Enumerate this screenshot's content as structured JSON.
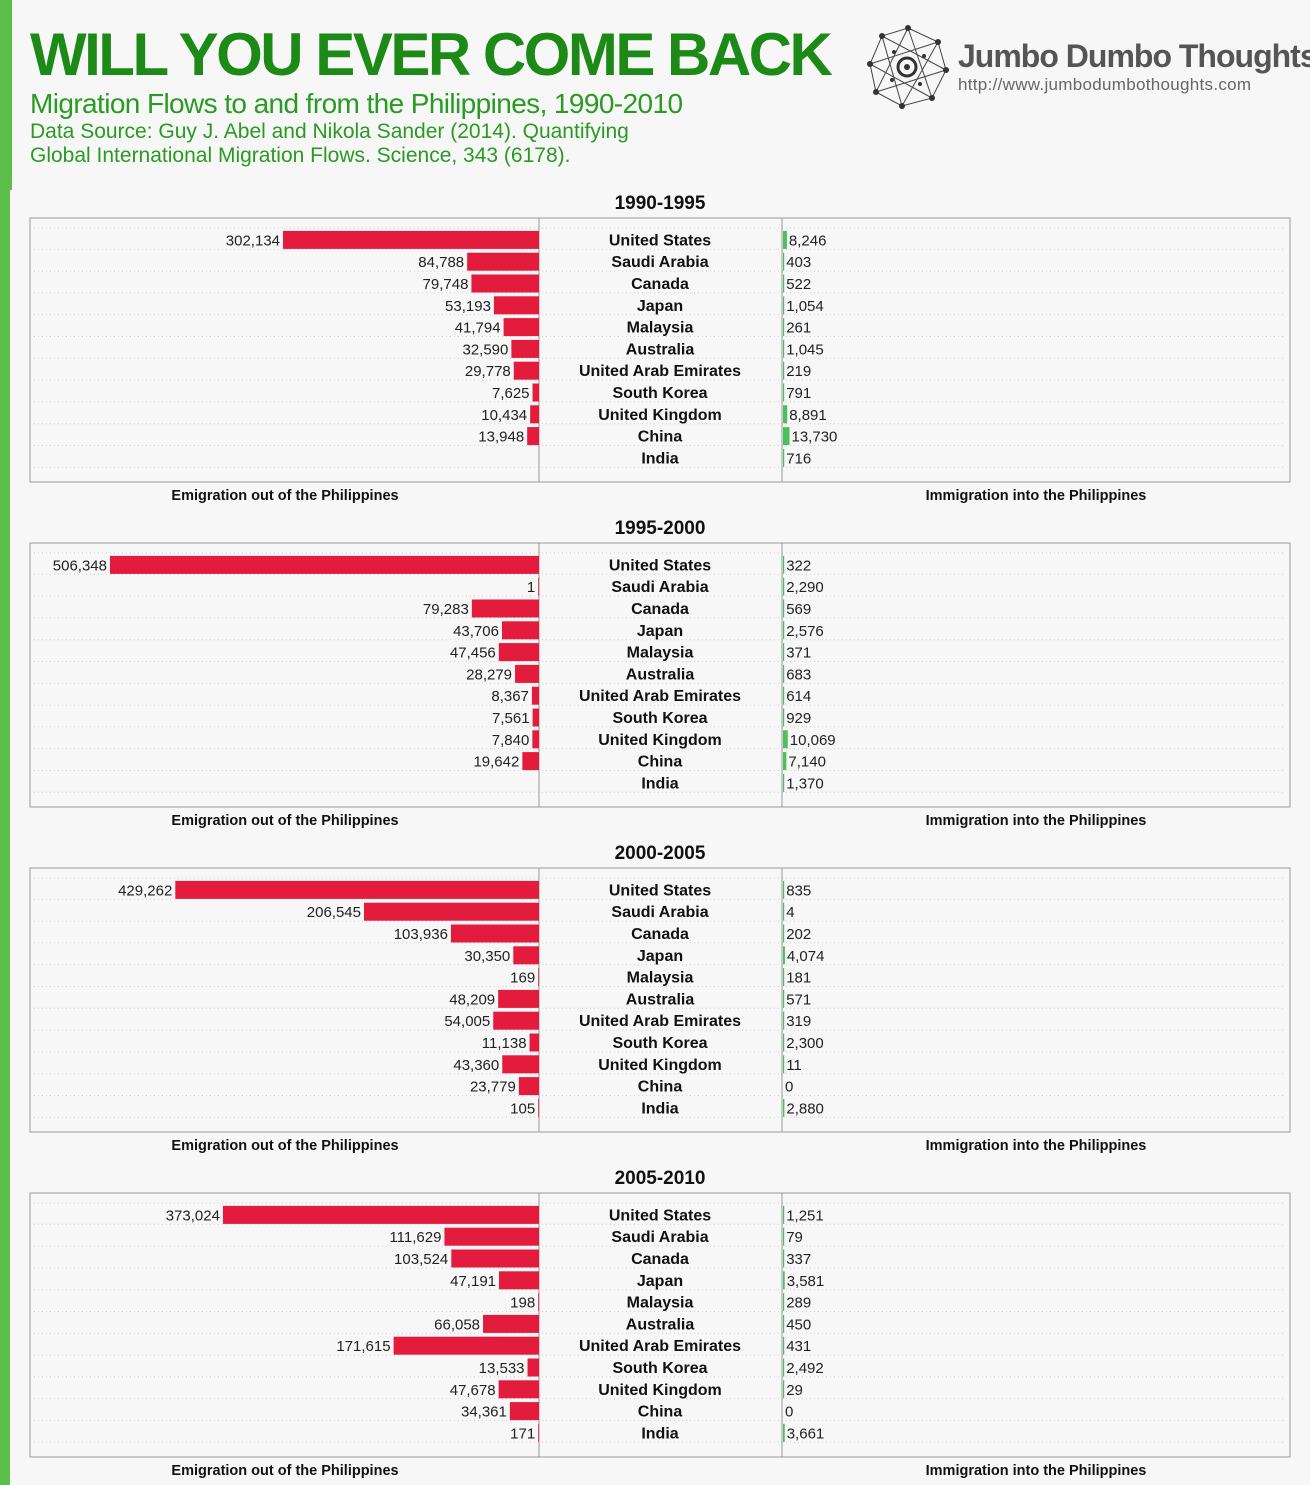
{
  "header": {
    "title": "WILL YOU EVER COME BACK",
    "subtitle": "Migration Flows to and from the Philippines, 1990-2010",
    "source_line1": "Data Source:  Guy J. Abel and Nikola Sander (2014). Quantifying",
    "source_line2": "Global International Migration Flows. Science, 343 (6178)."
  },
  "logo": {
    "name": "Jumbo Dumbo Thoughts",
    "url": "http://www.jumbodumbothoughts.com",
    "icon": "network-graph-icon"
  },
  "colors": {
    "emigration": "#e31c3d",
    "immigration": "#4cc05a",
    "title": "#1d8a17"
  },
  "chart_data": [
    {
      "type": "bar",
      "title": "1990-1995",
      "categories": [
        "United States",
        "Saudi Arabia",
        "Canada",
        "Japan",
        "Malaysia",
        "Australia",
        "United Arab Emirates",
        "South Korea",
        "United Kingdom",
        "China",
        "India"
      ],
      "series": [
        {
          "name": "Emigration out of the Philippines",
          "values": [
            302134,
            84788,
            79748,
            53193,
            41794,
            32590,
            29778,
            7625,
            10434,
            13948,
            null
          ]
        },
        {
          "name": "Immigration into the Philippines",
          "values": [
            8246,
            403,
            522,
            1054,
            261,
            1045,
            219,
            791,
            8891,
            13730,
            716
          ]
        }
      ],
      "labels_emigration": [
        "302,134",
        "84,788",
        "79,748",
        "53,193",
        "41,794",
        "32,590",
        "29,778",
        "7,625",
        "10,434",
        "13,948",
        ""
      ],
      "labels_immigration": [
        "8,246",
        "403",
        "522",
        "1,054",
        "261",
        "1,045",
        "219",
        "791",
        "8,891",
        "13,730",
        "716"
      ]
    },
    {
      "type": "bar",
      "title": "1995-2000",
      "categories": [
        "United States",
        "Saudi Arabia",
        "Canada",
        "Japan",
        "Malaysia",
        "Australia",
        "United Arab Emirates",
        "South Korea",
        "United Kingdom",
        "China",
        "India"
      ],
      "series": [
        {
          "name": "Emigration out of the Philippines",
          "values": [
            506348,
            1,
            79283,
            43706,
            47456,
            28279,
            8367,
            7561,
            7840,
            19642,
            null
          ]
        },
        {
          "name": "Immigration into the Philippines",
          "values": [
            322,
            2290,
            569,
            2576,
            371,
            683,
            614,
            929,
            10069,
            7140,
            1370
          ]
        }
      ],
      "labels_emigration": [
        "506,348",
        "1",
        "79,283",
        "43,706",
        "47,456",
        "28,279",
        "8,367",
        "7,561",
        "7,840",
        "19,642",
        ""
      ],
      "labels_immigration": [
        "322",
        "2,290",
        "569",
        "2,576",
        "371",
        "683",
        "614",
        "929",
        "10,069",
        "7,140",
        "1,370"
      ]
    },
    {
      "type": "bar",
      "title": "2000-2005",
      "categories": [
        "United States",
        "Saudi Arabia",
        "Canada",
        "Japan",
        "Malaysia",
        "Australia",
        "United Arab Emirates",
        "South Korea",
        "United Kingdom",
        "China",
        "India"
      ],
      "series": [
        {
          "name": "Emigration out of the Philippines",
          "values": [
            429262,
            206545,
            103936,
            30350,
            169,
            48209,
            54005,
            11138,
            43360,
            23779,
            105
          ]
        },
        {
          "name": "Immigration into the Philippines",
          "values": [
            835,
            4,
            202,
            4074,
            181,
            571,
            319,
            2300,
            11,
            0,
            2880
          ]
        }
      ],
      "labels_emigration": [
        "429,262",
        "206,545",
        "103,936",
        "30,350",
        "169",
        "48,209",
        "54,005",
        "11,138",
        "43,360",
        "23,779",
        "105"
      ],
      "labels_immigration": [
        "835",
        "4",
        "202",
        "4,074",
        "181",
        "571",
        "319",
        "2,300",
        "11",
        "0",
        "2,880"
      ]
    },
    {
      "type": "bar",
      "title": "2005-2010",
      "categories": [
        "United States",
        "Saudi Arabia",
        "Canada",
        "Japan",
        "Malaysia",
        "Australia",
        "United Arab Emirates",
        "South Korea",
        "United Kingdom",
        "China",
        "India"
      ],
      "series": [
        {
          "name": "Emigration out of the Philippines",
          "values": [
            373024,
            111629,
            103524,
            47191,
            198,
            66058,
            171615,
            13533,
            47678,
            34361,
            171
          ]
        },
        {
          "name": "Immigration into the Philippines",
          "values": [
            1251,
            79,
            337,
            3581,
            289,
            450,
            431,
            2492,
            29,
            0,
            3661
          ]
        }
      ],
      "labels_emigration": [
        "373,024",
        "111,629",
        "103,524",
        "47,191",
        "198",
        "66,058",
        "171,615",
        "13,533",
        "47,678",
        "34,361",
        "171"
      ],
      "labels_immigration": [
        "1,251",
        "79",
        "337",
        "3,581",
        "289",
        "450",
        "431",
        "2,492",
        "29",
        "0",
        "3,661"
      ]
    }
  ]
}
